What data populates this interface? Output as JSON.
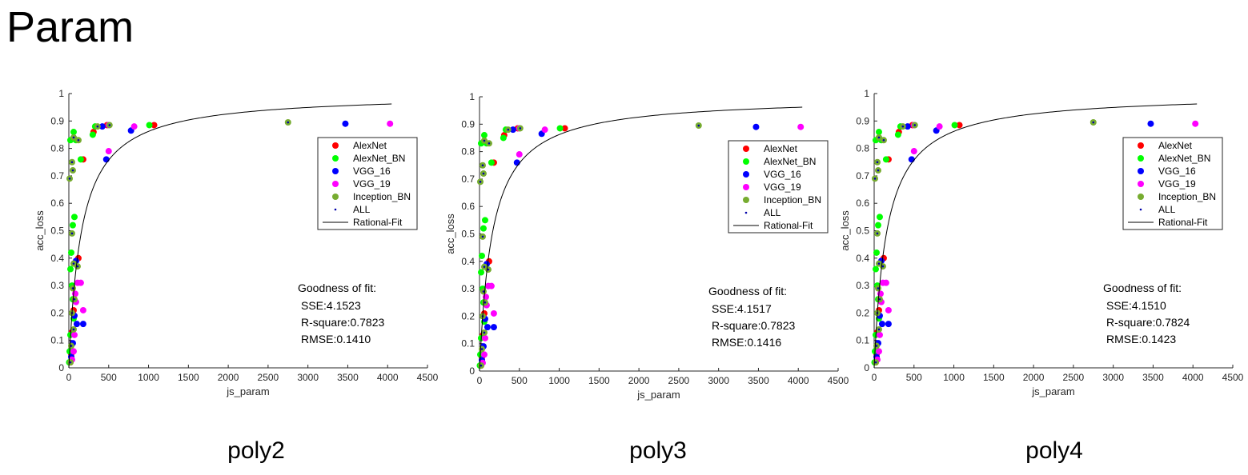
{
  "page_title": "Param",
  "colors": {
    "AlexNet": "#ff0000",
    "AlexNet_BN": "#00ff00",
    "VGG_16": "#0000ff",
    "VGG_19": "#ff00ff",
    "Inception_BN": "#77ac30",
    "ALL": "#0000aa",
    "fit": "#000000"
  },
  "legend_entries": [
    "AlexNet",
    "AlexNet_BN",
    "VGG_16",
    "VGG_19",
    "Inception_BN",
    "ALL",
    "Rational-Fit"
  ],
  "chart_data": [
    {
      "type": "scatter",
      "panel_title": "poly2",
      "xlabel": "js_param",
      "ylabel": "acc_loss",
      "xlim": [
        0,
        4500
      ],
      "ylim": [
        0,
        1
      ],
      "xticks": [
        0,
        500,
        1000,
        1500,
        2000,
        2500,
        3000,
        3500,
        4000,
        4500
      ],
      "yticks": [
        0,
        0.1,
        0.2,
        0.3,
        0.4,
        0.5,
        0.6,
        0.7,
        0.8,
        0.9,
        1
      ],
      "gof_title": "Goodness of fit:",
      "gof_lines": [
        "SSE:4.1523",
        "R-square:0.7823",
        "RMSE:0.1410"
      ],
      "fit": {
        "label": "Rational-Fit",
        "a": 1.0,
        "b": 160,
        "xmax": 4050
      }
    },
    {
      "type": "scatter",
      "panel_title": "poly3",
      "xlabel": "js_param",
      "ylabel": "acc_loss",
      "xlim": [
        0,
        4500
      ],
      "ylim": [
        0,
        1
      ],
      "xticks": [
        0,
        500,
        1000,
        1500,
        2000,
        2500,
        3000,
        3500,
        4000,
        4500
      ],
      "yticks": [
        0,
        0.1,
        0.2,
        0.3,
        0.4,
        0.5,
        0.6,
        0.7,
        0.8,
        0.9,
        1
      ],
      "gof_title": "Goodness of fit:",
      "gof_lines": [
        "SSE:4.1517",
        "R-square:0.7823",
        "RMSE:0.1416"
      ],
      "fit": {
        "label": "Rational-Fit",
        "a": 1.0,
        "b": 160,
        "xmax": 4050
      }
    },
    {
      "type": "scatter",
      "panel_title": "poly4",
      "xlabel": "js_param",
      "ylabel": "acc_loss",
      "xlim": [
        0,
        4500
      ],
      "ylim": [
        0,
        1
      ],
      "xticks": [
        0,
        500,
        1000,
        1500,
        2000,
        2500,
        3000,
        3500,
        4000,
        4500
      ],
      "yticks": [
        0,
        0.1,
        0.2,
        0.3,
        0.4,
        0.5,
        0.6,
        0.7,
        0.8,
        0.9,
        1
      ],
      "gof_title": "Goodness of fit:",
      "gof_lines": [
        "SSE:4.1510",
        "R-square:0.7824",
        "RMSE:0.1423"
      ],
      "fit": {
        "label": "Rational-Fit",
        "a": 1.0,
        "b": 160,
        "xmax": 4050
      }
    }
  ],
  "series_points": {
    "AlexNet": [
      [
        180,
        0.76
      ],
      [
        310,
        0.86
      ],
      [
        480,
        0.885
      ],
      [
        1070,
        0.885
      ],
      [
        120,
        0.4
      ],
      [
        60,
        0.21
      ],
      [
        40,
        0.13
      ],
      [
        30,
        0.05
      ],
      [
        20,
        0.02
      ]
    ],
    "AlexNet_BN": [
      [
        20,
        0.83
      ],
      [
        60,
        0.86
      ],
      [
        90,
        0.83
      ],
      [
        150,
        0.76
      ],
      [
        300,
        0.85
      ],
      [
        330,
        0.88
      ],
      [
        1010,
        0.885
      ],
      [
        70,
        0.55
      ],
      [
        50,
        0.52
      ],
      [
        30,
        0.42
      ],
      [
        20,
        0.36
      ],
      [
        40,
        0.3
      ],
      [
        50,
        0.25
      ],
      [
        60,
        0.18
      ],
      [
        20,
        0.12
      ],
      [
        10,
        0.06
      ],
      [
        5,
        0.02
      ]
    ],
    "VGG_16": [
      [
        420,
        0.88
      ],
      [
        780,
        0.865
      ],
      [
        470,
        0.76
      ],
      [
        3470,
        0.89
      ],
      [
        90,
        0.39
      ],
      [
        100,
        0.16
      ],
      [
        180,
        0.16
      ],
      [
        70,
        0.19
      ],
      [
        50,
        0.09
      ],
      [
        30,
        0.04
      ]
    ],
    "VGG_19": [
      [
        500,
        0.885
      ],
      [
        820,
        0.88
      ],
      [
        500,
        0.79
      ],
      [
        4030,
        0.89
      ],
      [
        110,
        0.31
      ],
      [
        150,
        0.31
      ],
      [
        80,
        0.27
      ],
      [
        90,
        0.24
      ],
      [
        180,
        0.21
      ],
      [
        70,
        0.12
      ],
      [
        60,
        0.06
      ],
      [
        40,
        0.03
      ]
    ],
    "Inception_BN": [
      [
        10,
        0.69
      ],
      [
        50,
        0.72
      ],
      [
        40,
        0.75
      ],
      [
        60,
        0.84
      ],
      [
        120,
        0.83
      ],
      [
        360,
        0.88
      ],
      [
        510,
        0.885
      ],
      [
        2750,
        0.895
      ],
      [
        40,
        0.49
      ],
      [
        60,
        0.38
      ],
      [
        110,
        0.37
      ],
      [
        50,
        0.29
      ],
      [
        70,
        0.25
      ],
      [
        40,
        0.2
      ],
      [
        60,
        0.14
      ],
      [
        30,
        0.08
      ],
      [
        20,
        0.02
      ]
    ],
    "ALL": [
      [
        10,
        0.69
      ],
      [
        50,
        0.72
      ],
      [
        40,
        0.75
      ],
      [
        60,
        0.84
      ],
      [
        120,
        0.83
      ],
      [
        360,
        0.88
      ],
      [
        510,
        0.885
      ],
      [
        2750,
        0.895
      ],
      [
        40,
        0.49
      ],
      [
        60,
        0.38
      ],
      [
        110,
        0.37
      ],
      [
        50,
        0.29
      ],
      [
        70,
        0.25
      ],
      [
        40,
        0.2
      ],
      [
        60,
        0.14
      ],
      [
        30,
        0.08
      ],
      [
        20,
        0.02
      ]
    ]
  }
}
